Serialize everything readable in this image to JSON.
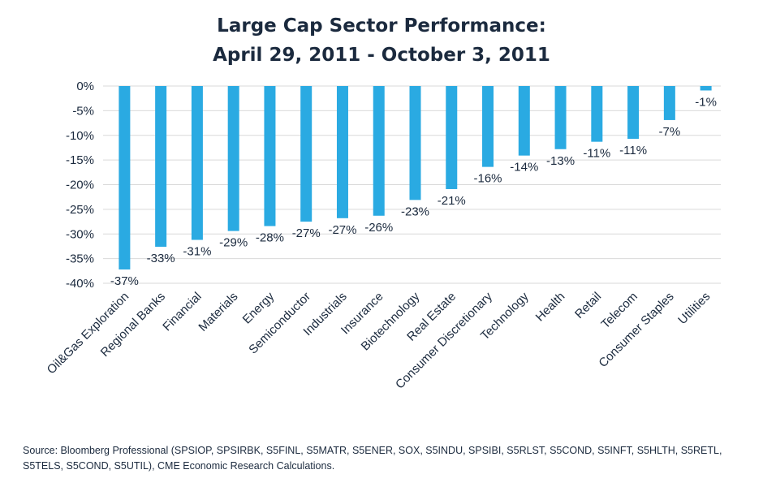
{
  "title_line1": "Large Cap Sector Performance:",
  "title_line2": "April 29, 2011 - October 3, 2011",
  "source": "Source: Bloomberg Professional (SPSIOP, SPSIRBK, S5FINL, S5MATR, S5ENER, SOX, S5INDU, SPSIBI, S5RLST, S5COND, S5INFT, S5HLTH, S5RETL, S5TELS, S5COND, S5UTIL), CME Economic Research Calculations.",
  "colors": {
    "bar": "#2aaae2",
    "grid": "#d9d9d9",
    "text": "#1b2a3e"
  },
  "chart_data": {
    "type": "bar",
    "title": "Large Cap Sector Performance: April 29, 2011 - October 3, 2011",
    "categories": [
      "Oil&Gas Exploration",
      "Regional Banks",
      "Financial",
      "Materials",
      "Energy",
      "Semiconductor",
      "Industrials",
      "Insurance",
      "Biotechnology",
      "Real Estate",
      "Consumer Discretionary",
      "Technology",
      "Health",
      "Retail",
      "Telecom",
      "Consumer Staples",
      "Utilities"
    ],
    "values": [
      -37.2,
      -32.6,
      -31.2,
      -29.4,
      -28.4,
      -27.5,
      -26.8,
      -26.3,
      -23.1,
      -20.9,
      -16.4,
      -14.1,
      -12.8,
      -11.3,
      -10.7,
      -6.9,
      -0.9
    ],
    "value_labels": [
      "-37%",
      "-33%",
      "-31%",
      "-29%",
      "-28%",
      "-27%",
      "-27%",
      "-26%",
      "-23%",
      "-21%",
      "-16%",
      "-14%",
      "-13%",
      "-11%",
      "-11%",
      "-7%",
      "-1%"
    ],
    "yticks": [
      0,
      -5,
      -10,
      -15,
      -20,
      -25,
      -30,
      -35,
      -40
    ],
    "ytick_labels": [
      "0%",
      "-5%",
      "-10%",
      "-15%",
      "-20%",
      "-25%",
      "-30%",
      "-35%",
      "-40%"
    ],
    "ylim": [
      -40,
      0
    ],
    "grid": true,
    "legend": false
  }
}
